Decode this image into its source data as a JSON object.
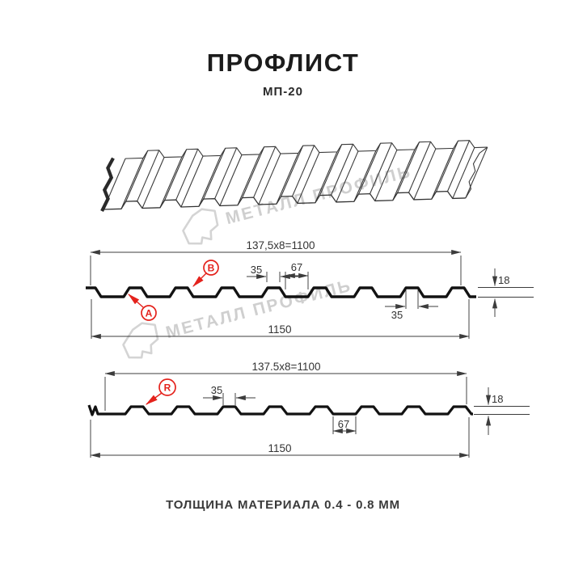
{
  "header": {
    "title": "ПРОФЛИСТ",
    "subtitle": "МП-20"
  },
  "footer": {
    "note": "ТОЛЩИНА МАТЕРИАЛА 0.4 - 0.8 ММ"
  },
  "brand": {
    "watermark_text": "МЕТАЛЛ ПРОФИЛЬ"
  },
  "colors": {
    "red": "#e4221c",
    "dim_line": "#3c3c3c",
    "profile_line": "#121212",
    "watermark": "#cdcdcd"
  },
  "sections": [
    {
      "name": "front-side-section",
      "pitch": "137,5x8=1100",
      "rib_width": "35",
      "flute_width": "67",
      "rib_width_bottom": "35",
      "height": "18",
      "total_width": "1150",
      "marks": [
        "A",
        "B"
      ]
    },
    {
      "name": "reverse-side-section",
      "pitch": "137.5x8=1100",
      "rib_width": "35",
      "flute_width": "67",
      "height": "18",
      "total_width": "1150",
      "marks": [
        "R"
      ]
    }
  ]
}
